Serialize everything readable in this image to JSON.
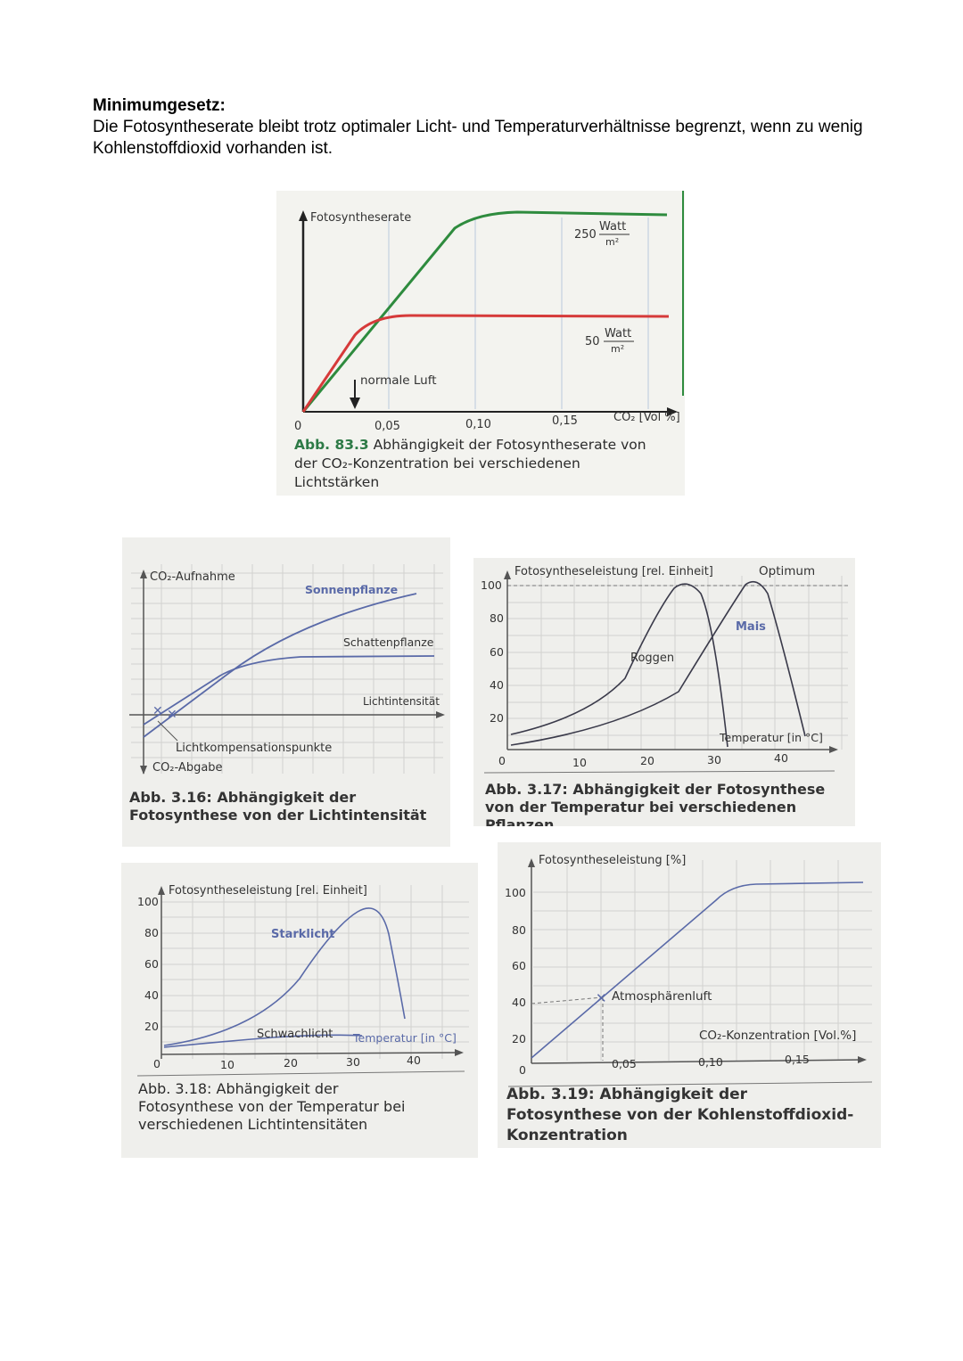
{
  "heading": "Minimumgesetz:",
  "intro": "Die Fotosyntheserate bleibt trotz optimaler Licht- und Temperaturverhältnisse begrenzt, wenn zu wenig Kohlenstoffdioxid vorhanden ist.",
  "figures": {
    "fig1": {
      "caption_num": "Abb. 83.3",
      "caption_text": "Abhängigkeit der Fotosyntheserate von der CO₂-Konzentration bei verschiedenen Lichtstärken",
      "ylabel": "Fotosyntheserate",
      "xlabel": "CO₂ [Vol %]",
      "origin": "0",
      "xticks": [
        "0,05",
        "0,10",
        "0,15"
      ],
      "curve_high_num": "250",
      "curve_low_num": "50",
      "unit_top": "Watt",
      "unit_bottom": "m²",
      "annotation": "normale Luft"
    },
    "fig2": {
      "caption": "Abb. 3.16: Abhängigkeit der Fotosynthese von der Lichtintensität",
      "ylabel_top": "CO₂-Aufnahme",
      "ylabel_bottom": "CO₂-Abgabe",
      "xlabel": "Lichtintensität",
      "series1": "Sonnenpflanze",
      "series2": "Schattenpflanze",
      "annotation": "Lichtkompensationspunkte"
    },
    "fig3": {
      "caption": "Abb. 3.17: Abhängigkeit der Fotosynthese von der Temperatur bei verschiedenen Pflanzen",
      "ylabel": "Fotosyntheseleistung [rel. Einheit]",
      "xlabel": "Temperatur [in °C]",
      "optimum": "Optimum",
      "series1": "Roggen",
      "series2": "Mais",
      "yticks": [
        "100",
        "80",
        "60",
        "40",
        "20",
        "0"
      ],
      "xticks": [
        "10",
        "20",
        "30",
        "40"
      ]
    },
    "fig4": {
      "caption": "Abb. 3.18: Abhängigkeit der Fotosynthese von der Temperatur bei verschiedenen Lichtintensitäten",
      "ylabel": "Fotosyntheseleistung [rel. Einheit]",
      "xlabel": "Temperatur [in °C]",
      "series1": "Starklicht",
      "series2": "Schwachlicht",
      "yticks": [
        "100",
        "80",
        "60",
        "40",
        "20",
        "0"
      ],
      "xticks": [
        "10",
        "20",
        "30",
        "40"
      ]
    },
    "fig5": {
      "caption": "Abb. 3.19: Abhängigkeit der Fotosynthese von der Kohlenstoffdioxid-Konzentration",
      "ylabel": "Fotosyntheseleistung [%]",
      "xlabel": "CO₂-Konzentration [Vol.%]",
      "annotation": "Atmosphärenluft",
      "yticks": [
        "100",
        "80",
        "60",
        "40",
        "20",
        "0"
      ],
      "xticks": [
        "0,05",
        "0,10",
        "0,15"
      ]
    }
  },
  "colors": {
    "green_curve": "#2e8b3e",
    "red_curve": "#d63a3a",
    "blue_curve": "#5a6aa8",
    "caption_green": "#2d7a46"
  }
}
